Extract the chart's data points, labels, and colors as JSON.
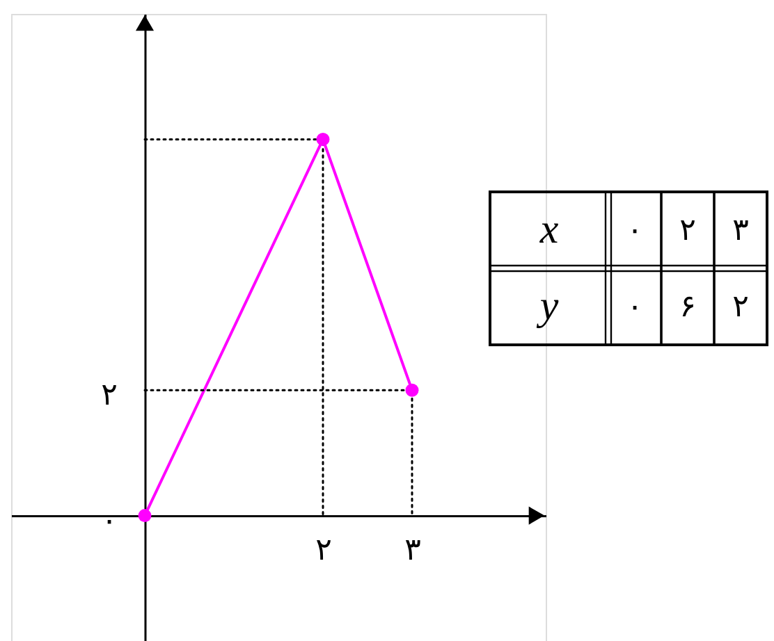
{
  "chart_data": {
    "type": "line",
    "xlabel": "x",
    "ylabel": "y",
    "x": [
      0,
      2,
      3
    ],
    "series": [
      {
        "color": "#ff00ff",
        "values": [
          0,
          6,
          2
        ],
        "marker": "circle"
      },
      {
        "x": [
          0,
          2,
          2
        ],
        "values": [
          6,
          6,
          0
        ],
        "color": "#000000",
        "line_style": "dotted",
        "marker": "none"
      },
      {
        "x": [
          0,
          3,
          3
        ],
        "values": [
          2,
          2,
          0
        ],
        "color": "#000000",
        "line_style": "dotted",
        "marker": "none"
      }
    ],
    "xlim": [
      -1.5,
      4.5
    ],
    "ylim": [
      -2,
      8
    ],
    "xticks": [
      {
        "value": 2,
        "label": "۲"
      },
      {
        "value": 3,
        "label": "۳"
      }
    ],
    "yticks": [
      {
        "value": 0,
        "label": "۰"
      },
      {
        "value": 2,
        "label": "۲"
      }
    ],
    "annotations": [
      "۰",
      "۲",
      "۳",
      "۰",
      "۶",
      "۲"
    ]
  }
}
